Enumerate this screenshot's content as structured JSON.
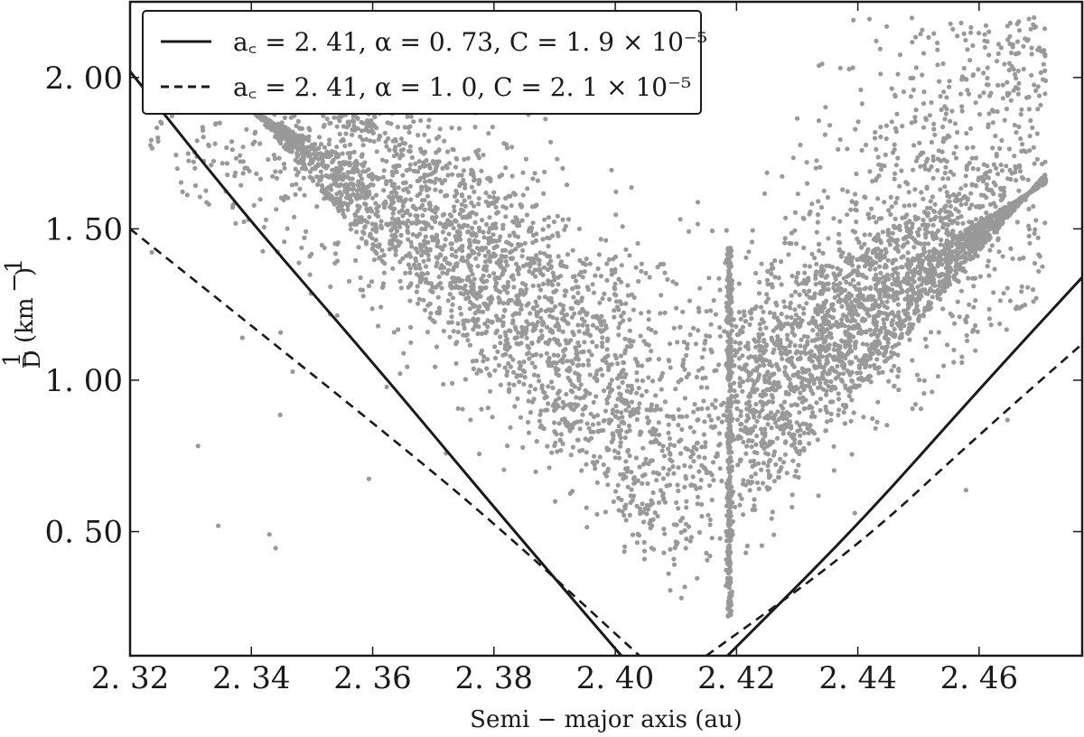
{
  "chart_data": {
    "type": "scatter",
    "title": "",
    "xlabel": "Semi − major axis (au)",
    "ylabel": "1/D (km⁻¹)",
    "ylabel_parts": {
      "num": "1",
      "den": "D",
      "unit": "(km",
      "exp": "−1",
      "close": ")"
    },
    "xlim": [
      2.32,
      2.477
    ],
    "ylim": [
      0.09,
      2.25
    ],
    "xticks": [
      2.32,
      2.34,
      2.36,
      2.38,
      2.4,
      2.42,
      2.44,
      2.46
    ],
    "xtick_labels": [
      "2. 32",
      "2. 34",
      "2. 36",
      "2. 38",
      "2. 40",
      "2. 42",
      "2. 44",
      "2. 46"
    ],
    "yticks": [
      0.5,
      1.0,
      1.5,
      2.0
    ],
    "ytick_labels": [
      "0. 50",
      "1. 00",
      "1. 50",
      "2. 00"
    ],
    "grid": false,
    "legend_position": "top-left",
    "point_color": "#999999",
    "scatter_description": "asteroid family members, V-shaped distribution; approx. 6000 points, dense at 0.5–1.5, with a vertical column near a = 2.419",
    "scatter_point_count": 6500,
    "curves": [
      {
        "name": "a_c = 2.41, α = 0.73, C = 1.9 × 10⁻⁵",
        "legend_text": "a꜀ = 2. 41,  α = 0. 73,  C = 1. 9 × 10⁻⁵",
        "style": "solid",
        "ac": 2.41,
        "alpha": 0.73,
        "C": 1.9e-05
      },
      {
        "name": "a_c = 2.41, α = 1.0, C = 2.1 × 10⁻⁵",
        "legend_text": "a꜀ = 2. 41,  α = 1. 0,  C = 2. 1 × 10⁻⁵",
        "style": "dashed",
        "ac": 2.41,
        "alpha": 1.0,
        "C": 2.1e-05
      }
    ],
    "curve_points": [
      {
        "style": "solid",
        "left": [
          [
            2.32,
            2.02
          ],
          [
            2.34,
            1.52
          ],
          [
            2.36,
            1.06
          ],
          [
            2.38,
            0.58
          ],
          [
            2.401,
            0.09
          ]
        ],
        "right": [
          [
            2.4185,
            0.09
          ],
          [
            2.44,
            0.52
          ],
          [
            2.46,
            0.97
          ],
          [
            2.477,
            1.34
          ]
        ]
      },
      {
        "style": "dashed",
        "left": [
          [
            2.32,
            1.5
          ],
          [
            2.34,
            1.18
          ],
          [
            2.36,
            0.86
          ],
          [
            2.38,
            0.53
          ],
          [
            2.404,
            0.09
          ]
        ],
        "right": [
          [
            2.415,
            0.09
          ],
          [
            2.44,
            0.45
          ],
          [
            2.46,
            0.82
          ],
          [
            2.477,
            1.12
          ]
        ]
      }
    ]
  }
}
